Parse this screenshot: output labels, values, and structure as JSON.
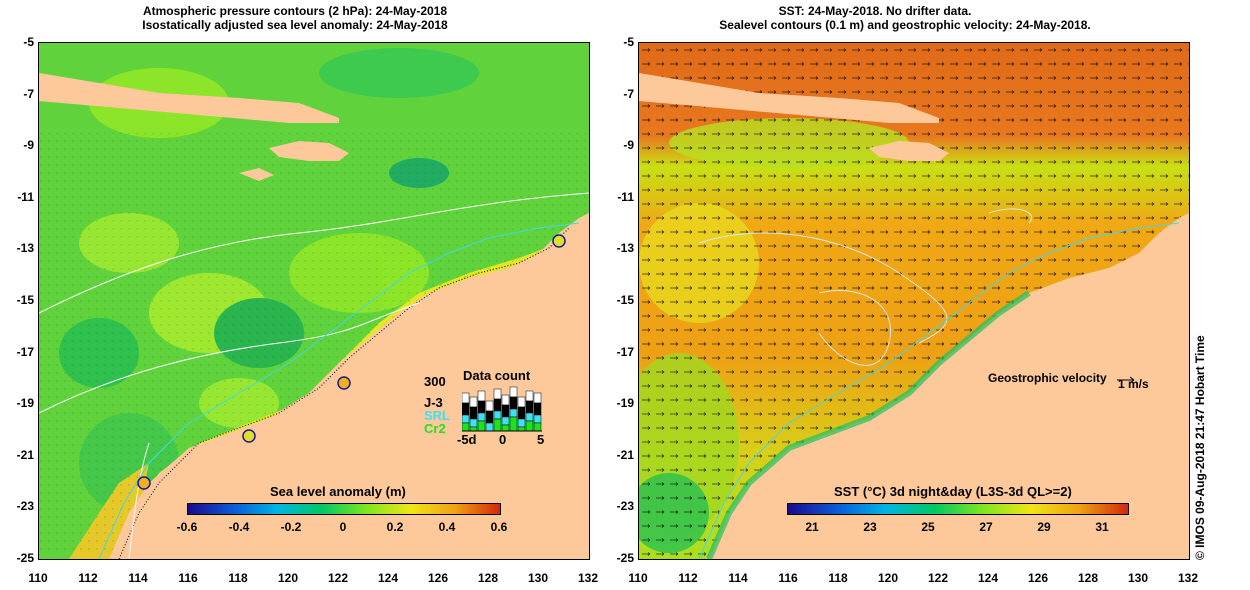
{
  "left_panel": {
    "title_line1": "Atmospheric pressure contours (2 hPa): 24-May-2018",
    "title_line2": "Isostatically adjusted sea level anomaly: 24-May-2018",
    "x_ticks": [
      "110",
      "112",
      "114",
      "116",
      "118",
      "120",
      "122",
      "124",
      "126",
      "128",
      "130",
      "132"
    ],
    "y_ticks": [
      "-5",
      "-7",
      "-9",
      "-11",
      "-13",
      "-15",
      "-17",
      "-19",
      "-21",
      "-23",
      "-25"
    ],
    "colorbar": {
      "title": "Sea level anomaly (m)",
      "labels": [
        "-0.6",
        "-0.4",
        "-0.2",
        "0",
        "0.2",
        "0.4",
        "0.6"
      ],
      "colors": [
        "#1a0a8c",
        "#0a5ad8",
        "#00b4e6",
        "#00c864",
        "#7ee61e",
        "#f0e614",
        "#f0a014",
        "#d2280a"
      ]
    },
    "tide_gauges": [
      {
        "lon": 130.9,
        "lat": -12.6
      },
      {
        "lon": 122.2,
        "lat": -18.2
      },
      {
        "lon": 118.4,
        "lat": -20.2
      },
      {
        "lon": 114.2,
        "lat": -22.0
      }
    ],
    "data_count": {
      "title": "Data count",
      "max_label": "300",
      "series": [
        "J-3",
        "SRL",
        "Cr2"
      ],
      "series_colors": [
        "#000000",
        "#40e0f0",
        "#20e020"
      ],
      "x_labels": [
        "-5d",
        "0",
        "5"
      ]
    }
  },
  "right_panel": {
    "title_line1": "SST: 24-May-2018. No drifter data.",
    "title_line2": "Sealevel contours (0.1 m) and geostrophic velocity: 24-May-2018.",
    "x_ticks": [
      "110",
      "112",
      "114",
      "116",
      "118",
      "120",
      "122",
      "124",
      "126",
      "128",
      "130",
      "132"
    ],
    "y_ticks": [
      "-5",
      "-7",
      "-9",
      "-11",
      "-13",
      "-15",
      "-17",
      "-19",
      "-21",
      "-23",
      "-25"
    ],
    "velocity_legend": "Geostrophic velocity",
    "velocity_unit": "1 m/s",
    "colorbar": {
      "title": "SST (°C) 3d night&day (L3S-3d QL>=2)",
      "labels": [
        "21",
        "23",
        "25",
        "27",
        "29",
        "31"
      ],
      "colors": [
        "#1a0a8c",
        "#0a5ad8",
        "#00b4e6",
        "#00c864",
        "#7ee61e",
        "#f0e614",
        "#f0a014",
        "#d2280a"
      ]
    }
  },
  "credit": "© IMOS 09-Aug-2018 21:47 Hobart Time",
  "colors": {
    "land": "#fdc99b",
    "ocean_green": "#5fd23c",
    "sst_warm": "#e8781e"
  }
}
